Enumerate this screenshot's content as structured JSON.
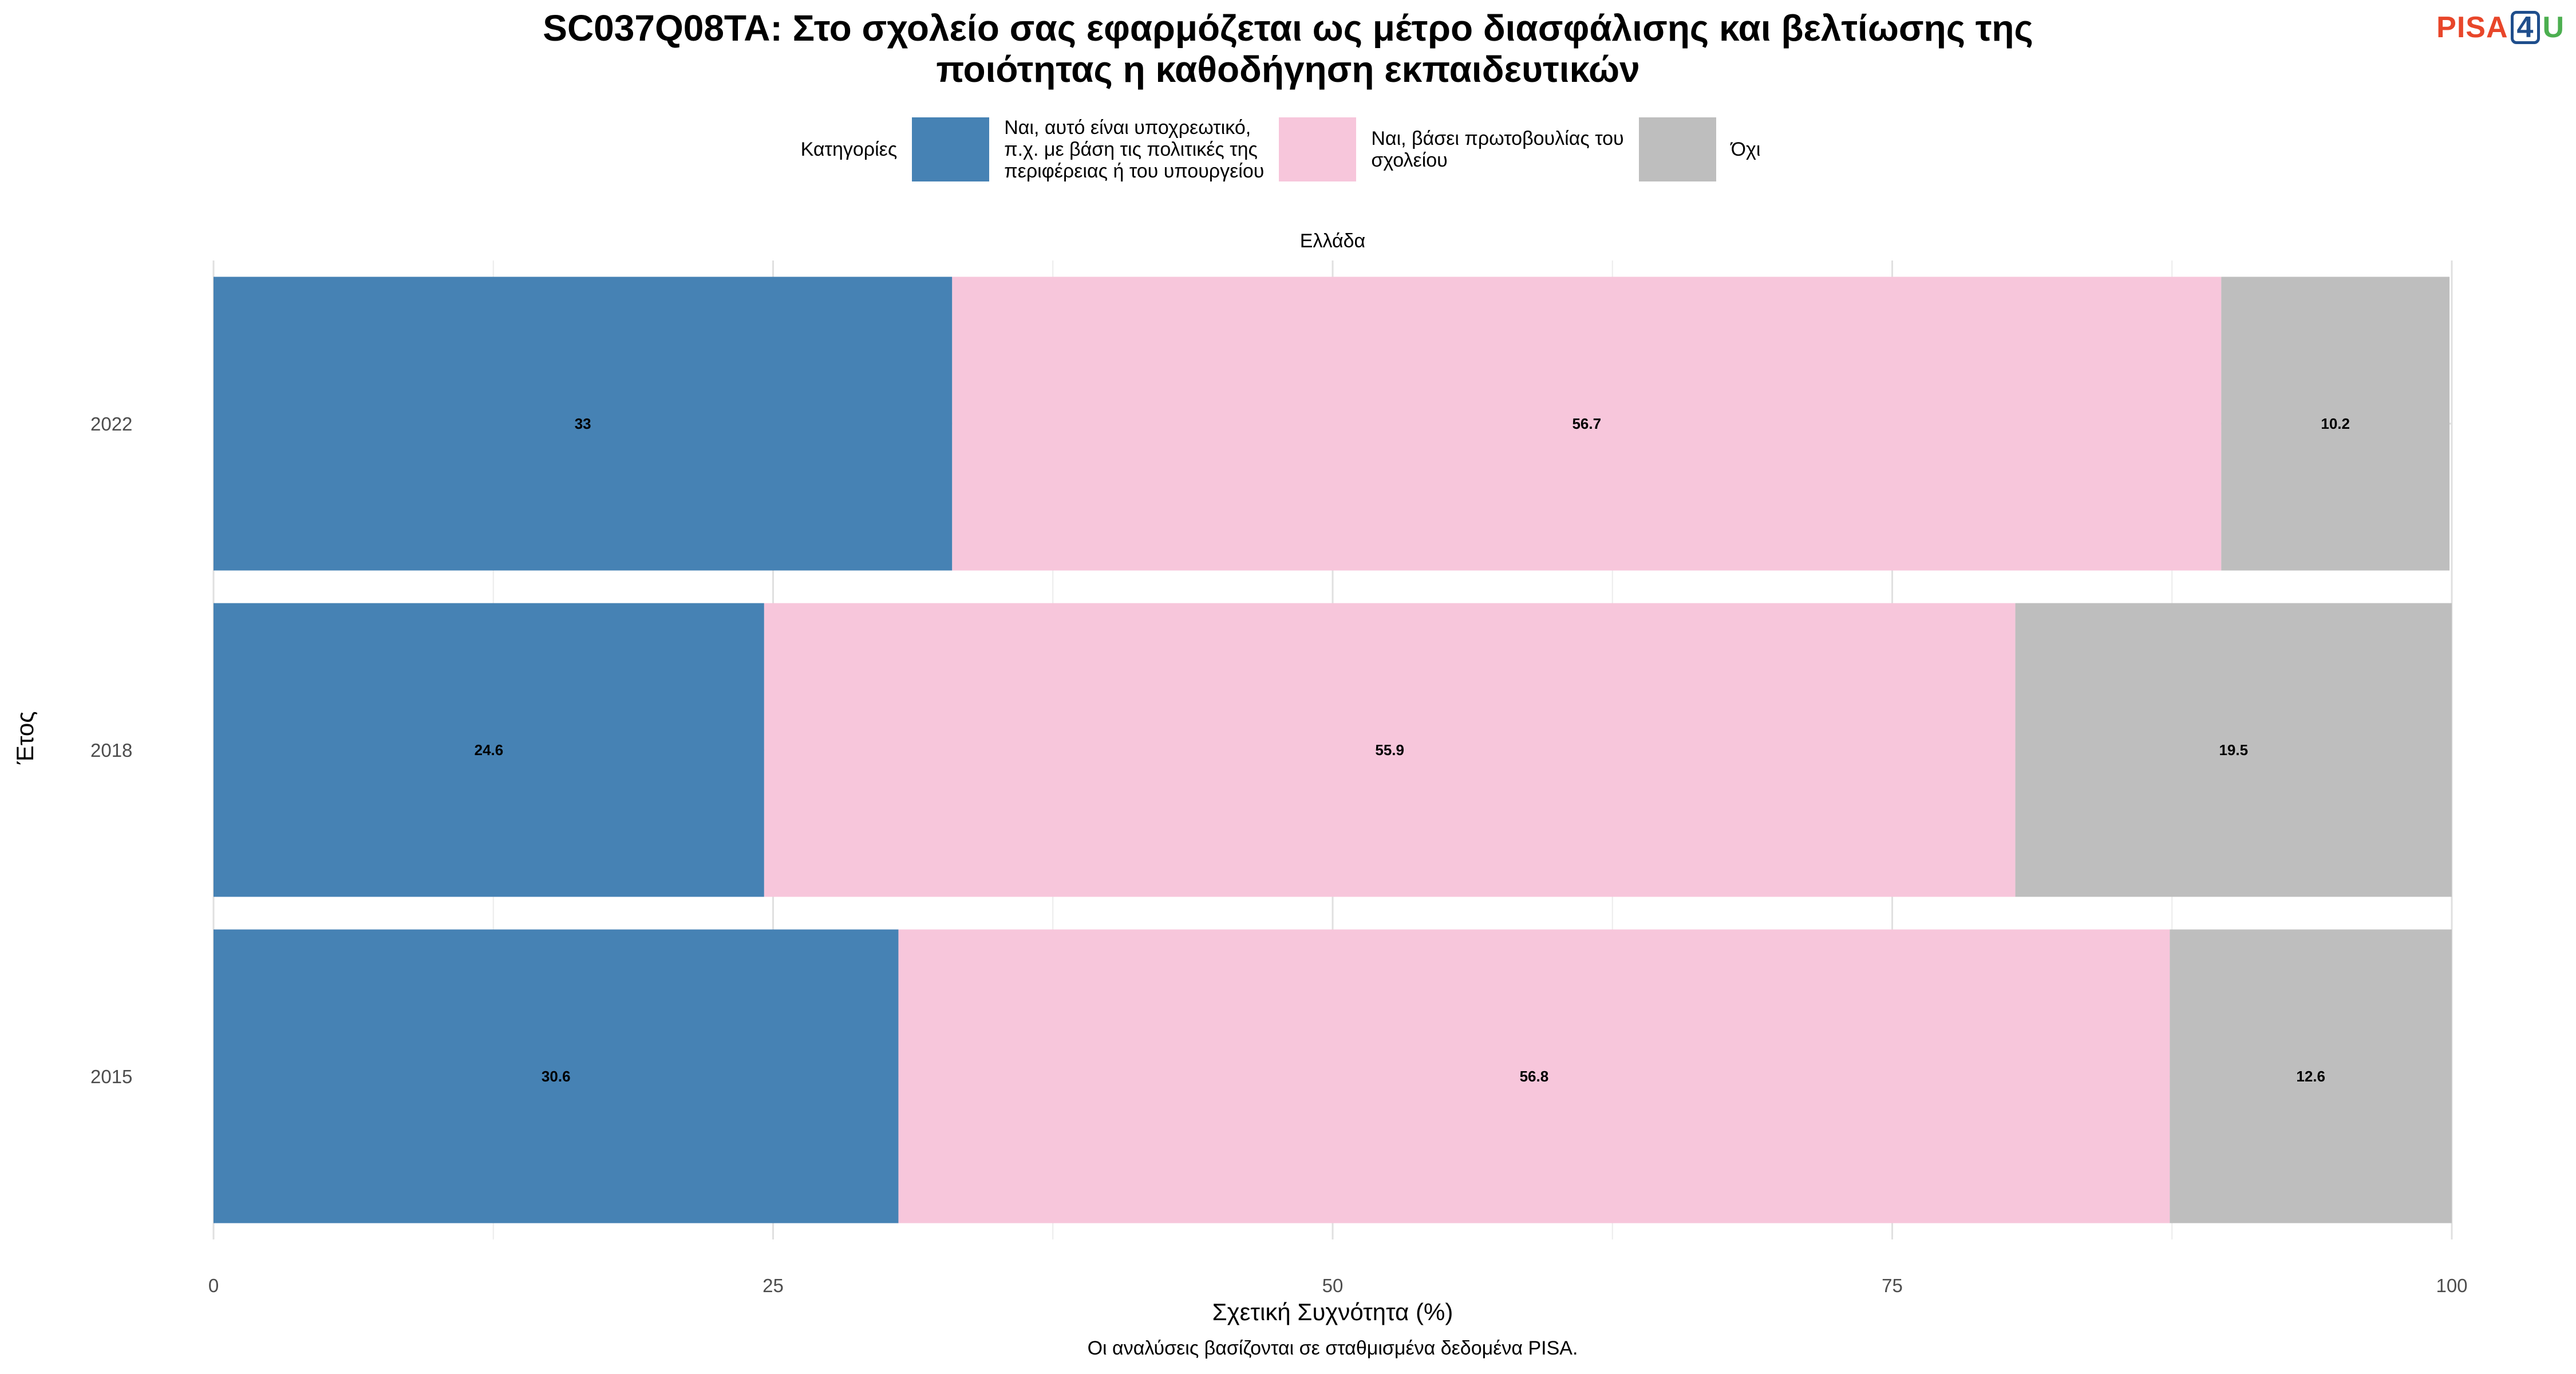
{
  "title": {
    "line1": "SC037Q08TA: Στο σχολείο σας εφαρμόζεται ως μέτρο διασφάλισης και βελτίωσης της",
    "line2": "ποιότητας η καθοδήγηση εκπαιδευτικών"
  },
  "logo": {
    "pisa": "PISA",
    "four": "4",
    "u": "U"
  },
  "legend": {
    "title": "Κατηγορίες",
    "items": [
      {
        "label": "Ναι, αυτό είναι υποχρεωτικό,\nπ.χ. με βάση τις πολιτικές της\nπεριφέρειας ή του υπουργείου",
        "color": "#4682b4"
      },
      {
        "label": "Ναι, βάσει πρωτοβουλίας του\nσχολείου",
        "color": "#f7c6db"
      },
      {
        "label": "Όχι",
        "color": "#bebebe"
      }
    ]
  },
  "facet_label": "Ελλάδα",
  "caption": "Οι αναλύσεις βασίζονται σε σταθμισμένα δεδομένα PISA.",
  "chart_data": {
    "type": "bar",
    "orientation": "horizontal",
    "stacked": true,
    "categories": [
      "2022",
      "2018",
      "2015"
    ],
    "series": [
      {
        "name": "Ναι, αυτό είναι υποχρεωτικό, π.χ. με βάση τις πολιτικές της περιφέρειας ή του υπουργείου",
        "color": "#4682b4",
        "values": [
          33,
          24.6,
          30.6
        ]
      },
      {
        "name": "Ναι, βάσει πρωτοβουλίας του σχολείου",
        "color": "#f7c6db",
        "values": [
          56.7,
          55.9,
          56.8
        ]
      },
      {
        "name": "Όχι",
        "color": "#bebebe",
        "values": [
          10.2,
          19.5,
          12.6
        ]
      }
    ],
    "xlabel": "Σχετική Συχνότητα (%)",
    "ylabel": "Έτος",
    "xlim": [
      0,
      100
    ],
    "xticks": [
      0,
      25,
      50,
      75,
      100
    ],
    "grid": true,
    "legend_position": "top"
  }
}
